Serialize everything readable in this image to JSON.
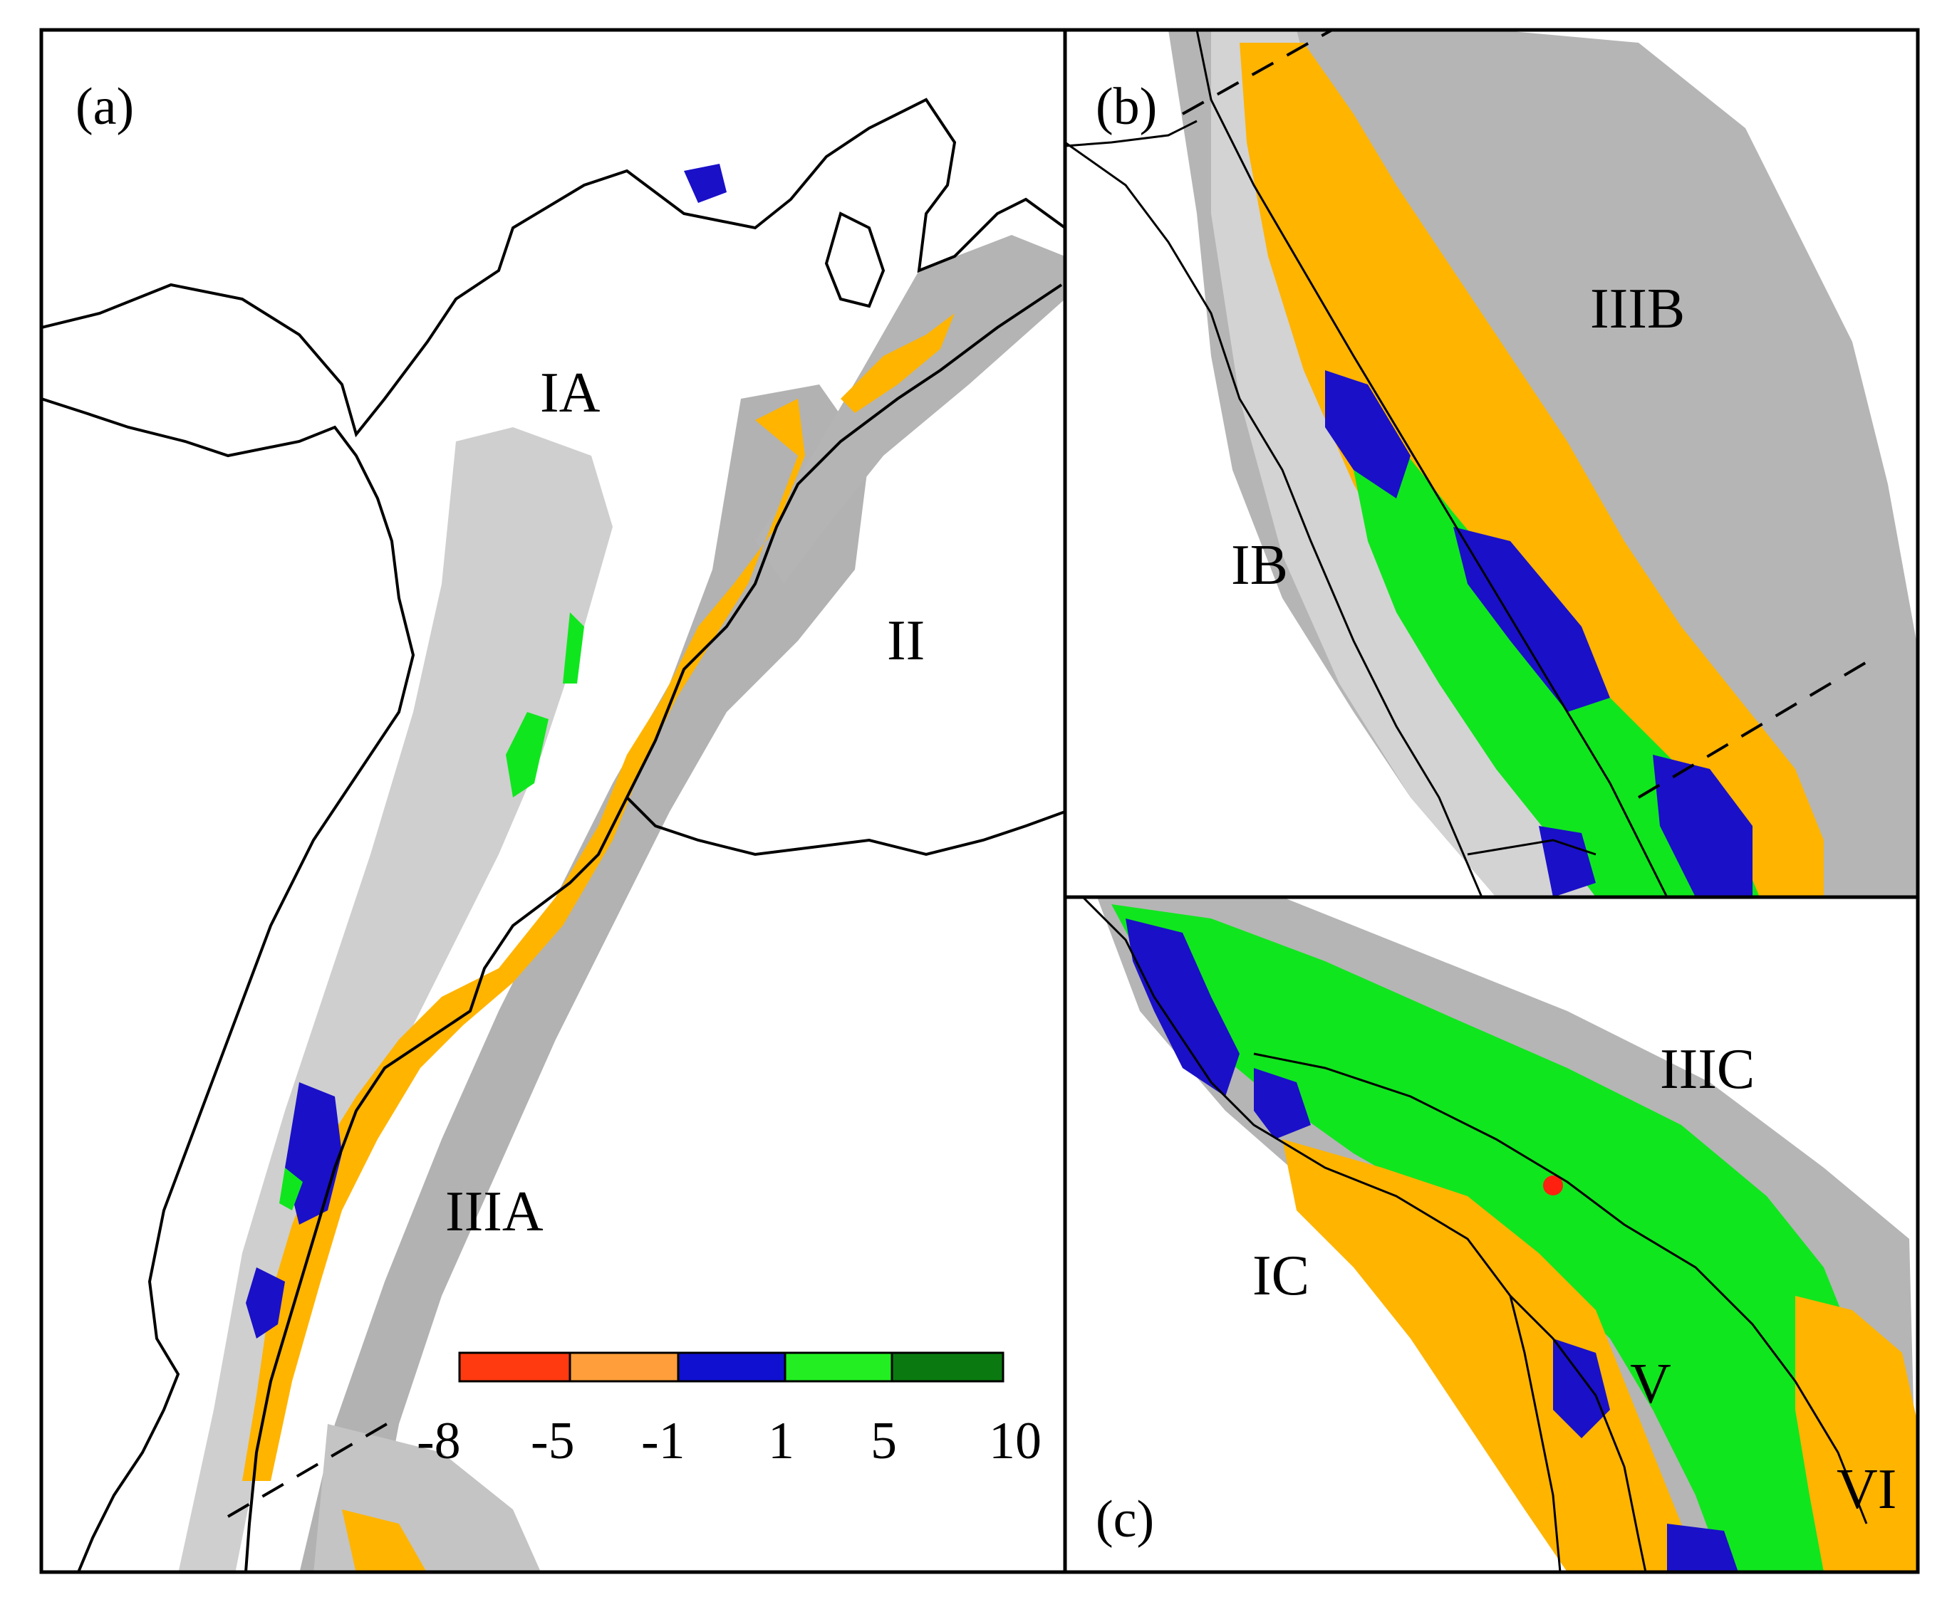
{
  "panels": [
    {
      "tag": "(a)",
      "regions": [
        "IA",
        "II",
        "IIIA"
      ]
    },
    {
      "tag": "(b)",
      "regions": [
        "IIIB",
        "IB"
      ]
    },
    {
      "tag": "(c)",
      "regions": [
        "IIIC",
        "IC",
        "V",
        "VI"
      ]
    }
  ],
  "legend": {
    "ticks": [
      "-8",
      "-5",
      "-1",
      "1",
      "5",
      "10"
    ],
    "colors": [
      "#ff3a10",
      "#ff9e3a",
      "#1010d0",
      "#22ee22",
      "#0a7a10"
    ]
  },
  "colors": {
    "orange": "#ffb400",
    "gray_dark": "#a8a8a8",
    "gray_light": "#cfcfcf",
    "blue": "#1a10c8",
    "green": "#10e61e",
    "red": "#ff2010",
    "outline": "#000000"
  }
}
